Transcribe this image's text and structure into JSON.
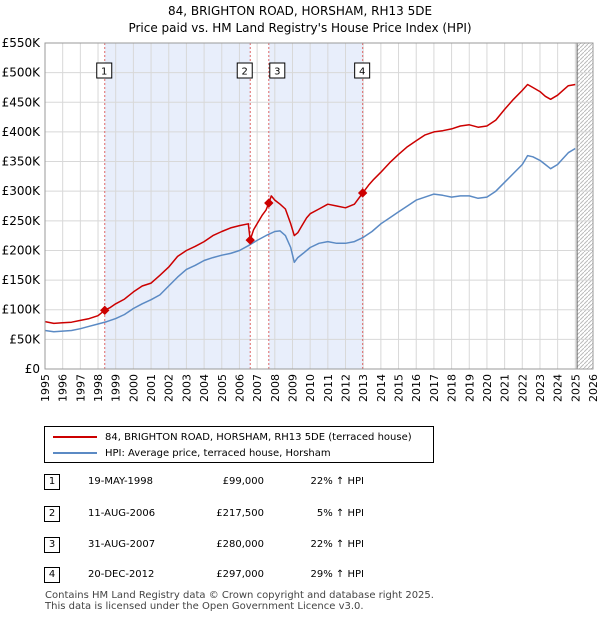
{
  "chart_data": {
    "type": "line",
    "title": "84, BRIGHTON ROAD, HORSHAM, RH13 5DE",
    "subtitle": "Price paid vs. HM Land Registry's House Price Index (HPI)",
    "x_range": [
      1995,
      2026
    ],
    "ylim": [
      0,
      550000
    ],
    "y_ticks": [
      {
        "value": 0,
        "label": "£0"
      },
      {
        "value": 50000,
        "label": "£50K"
      },
      {
        "value": 100000,
        "label": "£100K"
      },
      {
        "value": 150000,
        "label": "£150K"
      },
      {
        "value": 200000,
        "label": "£200K"
      },
      {
        "value": 250000,
        "label": "£250K"
      },
      {
        "value": 300000,
        "label": "£300K"
      },
      {
        "value": 350000,
        "label": "£350K"
      },
      {
        "value": 400000,
        "label": "£400K"
      },
      {
        "value": 450000,
        "label": "£450K"
      },
      {
        "value": 500000,
        "label": "£500K"
      },
      {
        "value": 550000,
        "label": "£550K"
      }
    ],
    "x_ticks": [
      "1995",
      "1996",
      "1997",
      "1998",
      "1999",
      "2000",
      "2001",
      "2002",
      "2003",
      "2004",
      "2005",
      "2006",
      "2007",
      "2008",
      "2009",
      "2010",
      "2011",
      "2012",
      "2013",
      "2014",
      "2015",
      "2016",
      "2017",
      "2018",
      "2019",
      "2020",
      "2021",
      "2022",
      "2023",
      "2024",
      "2025",
      "2026"
    ],
    "shaded_periods": [
      [
        1998.38,
        2006.61
      ],
      [
        2007.66,
        2012.97
      ]
    ],
    "future_hatch_from": 2025.1,
    "series": [
      {
        "name": "84, BRIGHTON ROAD, HORSHAM, RH13 5DE (terraced house)",
        "color": "#cc0000",
        "x": [
          1995.0,
          1995.5,
          1996.0,
          1996.5,
          1997.0,
          1997.5,
          1998.0,
          1998.38,
          1998.7,
          1999.0,
          1999.5,
          2000.0,
          2000.5,
          2001.0,
          2001.5,
          2002.0,
          2002.5,
          2003.0,
          2003.5,
          2004.0,
          2004.5,
          2005.0,
          2005.5,
          2006.0,
          2006.5,
          2006.61,
          2006.8,
          2007.0,
          2007.3,
          2007.5,
          2007.66,
          2007.8,
          2008.0,
          2008.3,
          2008.6,
          2008.9,
          2009.1,
          2009.3,
          2009.5,
          2009.8,
          2010.0,
          2010.5,
          2011.0,
          2011.5,
          2012.0,
          2012.5,
          2012.97,
          2013.3,
          2013.6,
          2014.0,
          2014.5,
          2015.0,
          2015.5,
          2016.0,
          2016.5,
          2017.0,
          2017.5,
          2018.0,
          2018.5,
          2019.0,
          2019.5,
          2020.0,
          2020.5,
          2021.0,
          2021.5,
          2022.0,
          2022.3,
          2022.6,
          2023.0,
          2023.3,
          2023.6,
          2024.0,
          2024.3,
          2024.6,
          2025.0
        ],
        "values": [
          80000,
          77000,
          78000,
          79000,
          82000,
          85000,
          90000,
          99000,
          104000,
          110000,
          118000,
          130000,
          140000,
          145000,
          158000,
          172000,
          190000,
          200000,
          207000,
          215000,
          225000,
          232000,
          238000,
          242000,
          245000,
          217500,
          235000,
          245000,
          260000,
          268000,
          280000,
          292000,
          285000,
          278000,
          270000,
          245000,
          225000,
          230000,
          240000,
          255000,
          262000,
          270000,
          278000,
          275000,
          272000,
          278000,
          297000,
          310000,
          320000,
          332000,
          348000,
          362000,
          375000,
          385000,
          395000,
          400000,
          402000,
          405000,
          410000,
          412000,
          408000,
          410000,
          420000,
          438000,
          455000,
          470000,
          480000,
          475000,
          468000,
          460000,
          455000,
          462000,
          470000,
          478000,
          480000
        ]
      },
      {
        "name": "HPI: Average price, terraced house, Horsham",
        "color": "#5b8ac4",
        "x": [
          1995.0,
          1995.5,
          1996.0,
          1996.5,
          1997.0,
          1997.5,
          1998.0,
          1998.5,
          1999.0,
          1999.5,
          2000.0,
          2000.5,
          2001.0,
          2001.5,
          2002.0,
          2002.5,
          2003.0,
          2003.5,
          2004.0,
          2004.5,
          2005.0,
          2005.5,
          2006.0,
          2006.5,
          2007.0,
          2007.5,
          2008.0,
          2008.3,
          2008.6,
          2008.9,
          2009.1,
          2009.3,
          2009.6,
          2010.0,
          2010.5,
          2011.0,
          2011.5,
          2012.0,
          2012.5,
          2013.0,
          2013.5,
          2014.0,
          2014.5,
          2015.0,
          2015.5,
          2016.0,
          2016.5,
          2017.0,
          2017.5,
          2018.0,
          2018.5,
          2019.0,
          2019.5,
          2020.0,
          2020.5,
          2021.0,
          2021.5,
          2022.0,
          2022.3,
          2022.6,
          2023.0,
          2023.3,
          2023.6,
          2024.0,
          2024.3,
          2024.6,
          2025.0
        ],
        "values": [
          65000,
          63000,
          64000,
          65000,
          68000,
          72000,
          76000,
          80000,
          85000,
          92000,
          102000,
          110000,
          117000,
          125000,
          140000,
          155000,
          168000,
          175000,
          183000,
          188000,
          192000,
          195000,
          200000,
          208000,
          217000,
          225000,
          232000,
          233000,
          225000,
          205000,
          180000,
          188000,
          195000,
          205000,
          212000,
          215000,
          212000,
          212000,
          215000,
          222000,
          232000,
          245000,
          255000,
          265000,
          275000,
          285000,
          290000,
          295000,
          293000,
          290000,
          292000,
          292000,
          288000,
          290000,
          300000,
          315000,
          330000,
          345000,
          360000,
          358000,
          352000,
          345000,
          338000,
          345000,
          355000,
          365000,
          372000
        ]
      }
    ],
    "sales": [
      {
        "label": "1",
        "x": 1998.38,
        "value": 99000
      },
      {
        "label": "2",
        "x": 2006.61,
        "value": 217500
      },
      {
        "label": "3",
        "x": 2007.66,
        "value": 280000
      },
      {
        "label": "4",
        "x": 2012.97,
        "value": 297000
      }
    ]
  },
  "legend": {
    "property_label": "84, BRIGHTON ROAD, HORSHAM, RH13 5DE (terraced house)",
    "hpi_label": "HPI: Average price, terraced house, Horsham"
  },
  "transactions": [
    {
      "num": "1",
      "date": "19-MAY-1998",
      "price": "£99,000",
      "hpi": "22% ↑ HPI"
    },
    {
      "num": "2",
      "date": "11-AUG-2006",
      "price": "£217,500",
      "hpi": "5% ↑ HPI"
    },
    {
      "num": "3",
      "date": "31-AUG-2007",
      "price": "£280,000",
      "hpi": "22% ↑ HPI"
    },
    {
      "num": "4",
      "date": "20-DEC-2012",
      "price": "£297,000",
      "hpi": "29% ↑ HPI"
    }
  ],
  "footer": {
    "line1": "Contains HM Land Registry data © Crown copyright and database right 2025.",
    "line2": "This data is licensed under the Open Government Licence v3.0."
  }
}
